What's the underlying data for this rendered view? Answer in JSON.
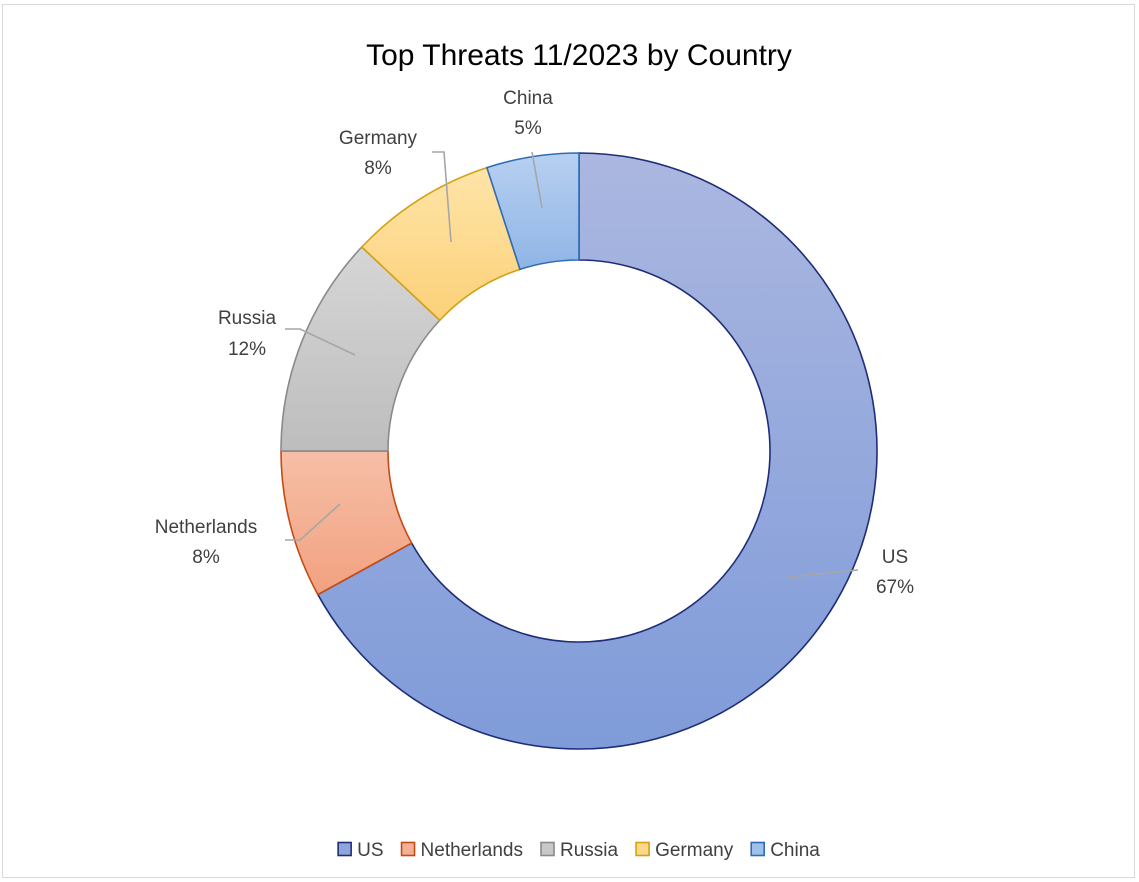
{
  "chart_data": {
    "type": "pie",
    "title": "Top Threats 11/2023 by Country",
    "donut": true,
    "start_angle": "12 o'clock",
    "direction": "clockwise",
    "legend_position": "bottom",
    "slices": [
      {
        "label": "US",
        "value": 67,
        "value_label": "67%",
        "fill": "#8fa6dc",
        "stroke": "#1f2d78"
      },
      {
        "label": "Netherlands",
        "value": 8,
        "value_label": "8%",
        "fill": "#f4b096",
        "stroke": "#c44b14"
      },
      {
        "label": "Russia",
        "value": 12,
        "value_label": "12%",
        "fill": "#c8c8c8",
        "stroke": "#8a8a8a"
      },
      {
        "label": "Germany",
        "value": 8,
        "value_label": "8%",
        "fill": "#fdd88b",
        "stroke": "#d4a014"
      },
      {
        "label": "China",
        "value": 5,
        "value_label": "5%",
        "fill": "#9fc0ea",
        "stroke": "#2e6db5"
      }
    ]
  }
}
